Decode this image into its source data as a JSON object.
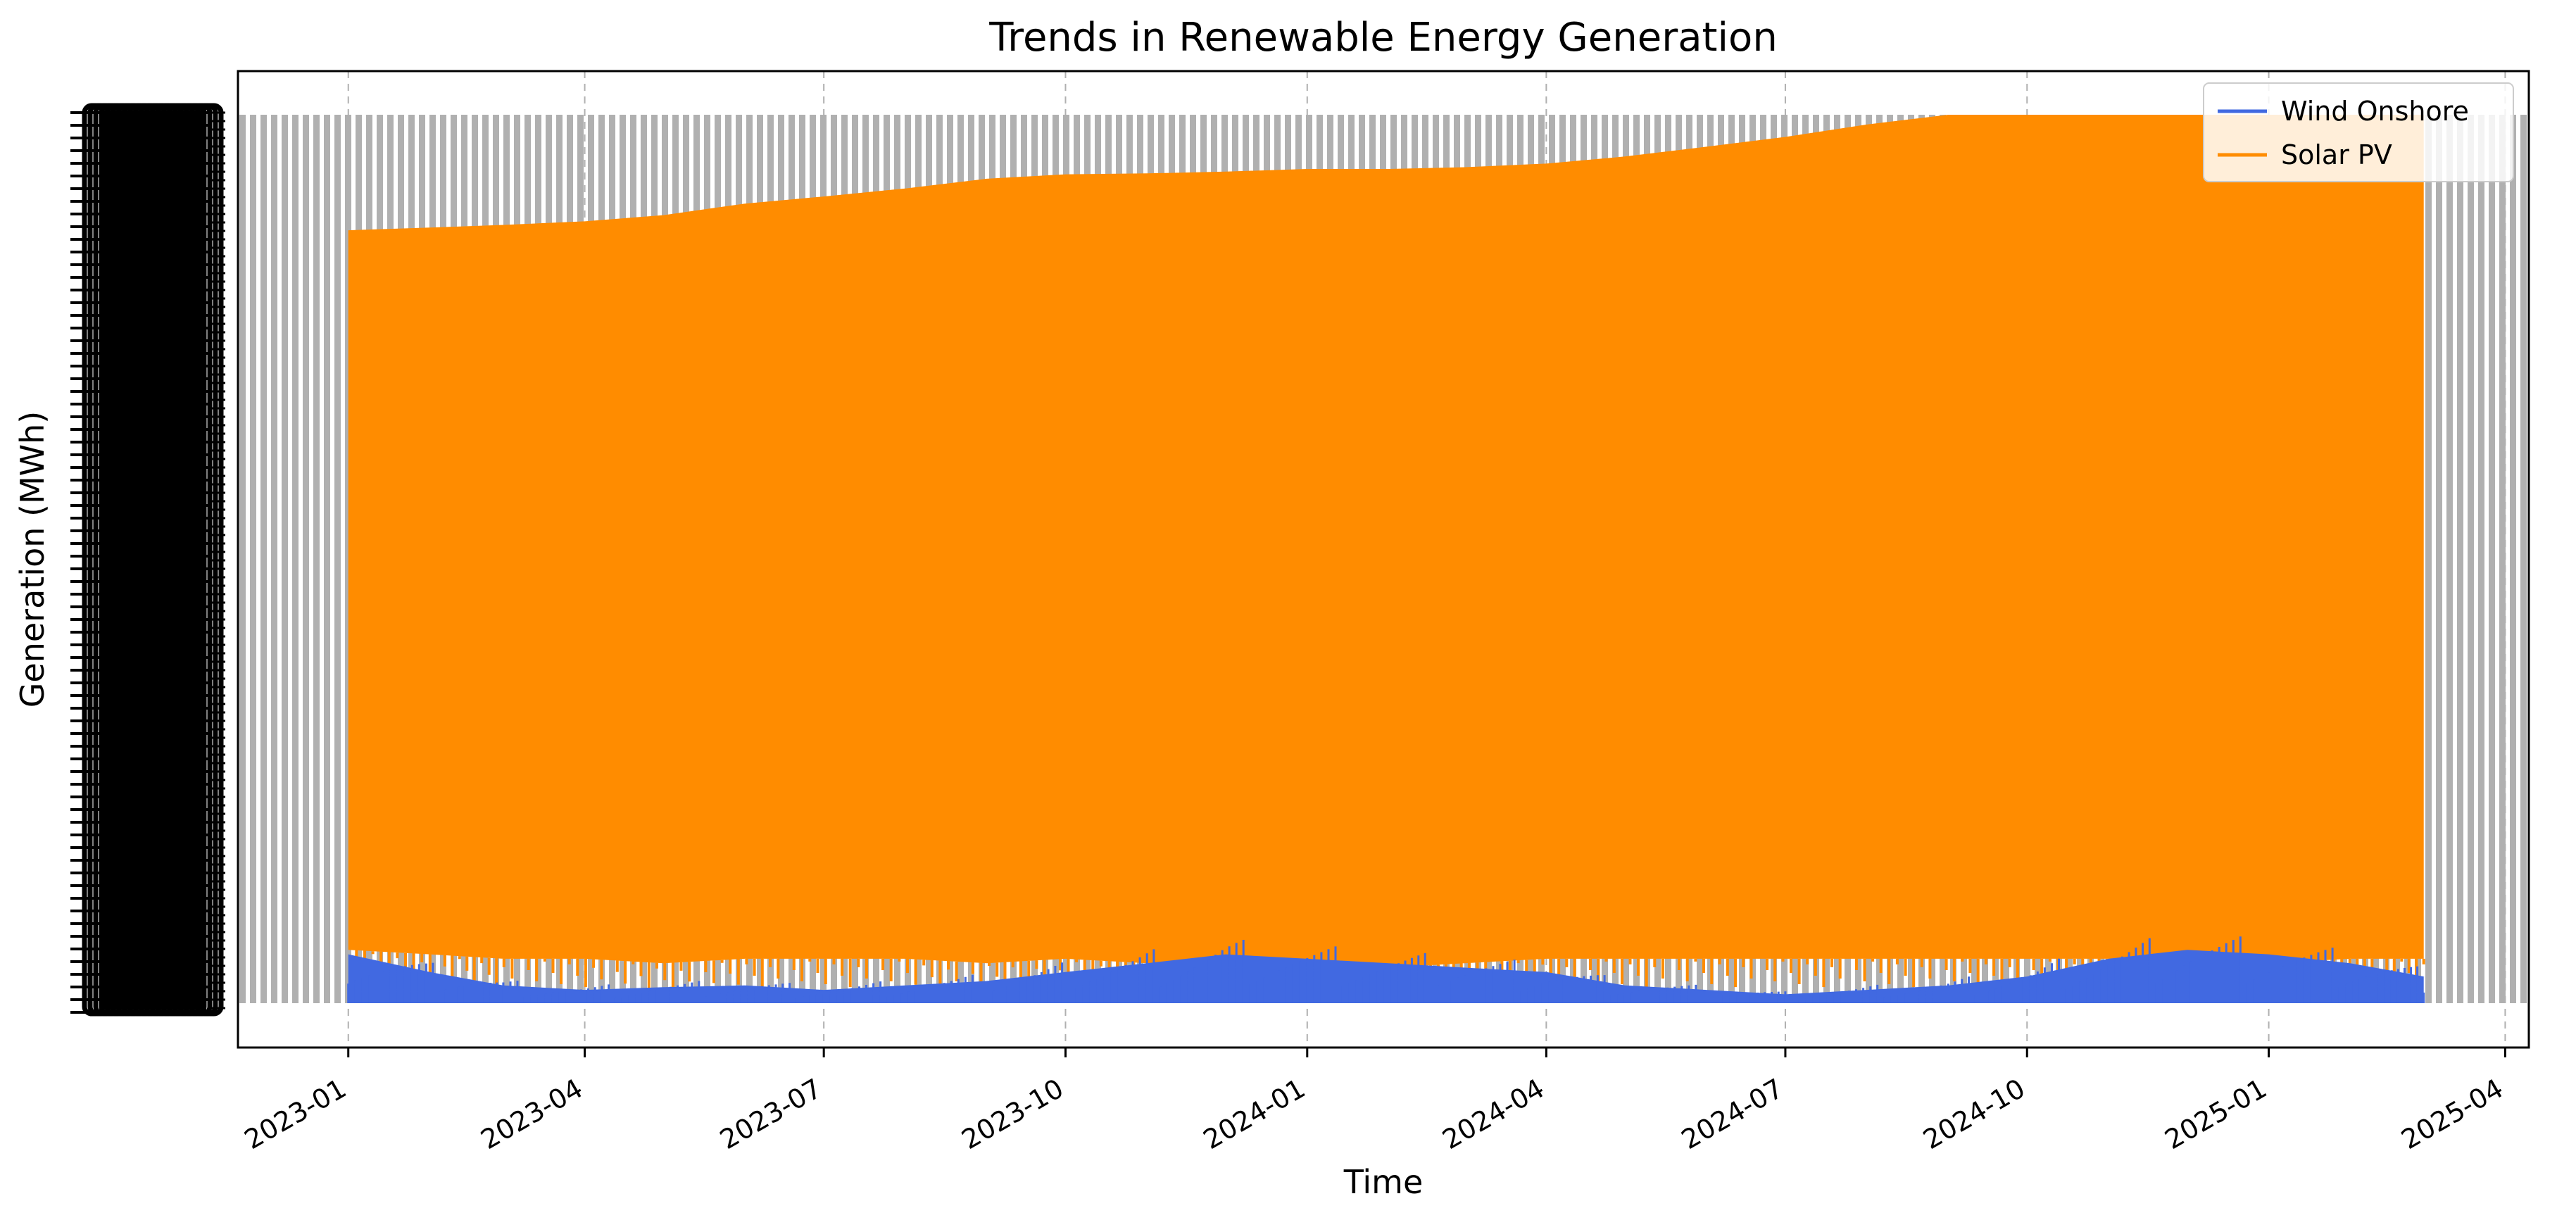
{
  "chart_data": {
    "type": "area",
    "title": "Trends in Renewable Energy Generation",
    "xlabel": "Time",
    "ylabel": "Generation (MWh)",
    "x_axis": {
      "kind": "date",
      "range": [
        "2022-11-20",
        "2025-04-10"
      ],
      "ticks": [
        "2023-01",
        "2023-04",
        "2023-07",
        "2023-10",
        "2024-01",
        "2024-04",
        "2024-07",
        "2024-10",
        "2025-01",
        "2025-04"
      ],
      "tick_label_rotation_deg": 30
    },
    "y_axis": {
      "kind": "categorical",
      "note": "overlapping unreadable tick labels drawn at left; values not legible",
      "range": [
        0,
        1
      ]
    },
    "grid": {
      "x": true,
      "y": false,
      "style": "dashed"
    },
    "legend": {
      "placement": "top-right",
      "entries": [
        "Wind Onshore",
        "Solar PV"
      ]
    },
    "colors": {
      "wind_onshore": "#4169e1",
      "solar_pv": "#ff8c00",
      "background_bars": "#b0b0b0"
    },
    "x": [
      "2023-01-01",
      "2023-02-01",
      "2023-03-01",
      "2023-04-01",
      "2023-05-01",
      "2023-06-01",
      "2023-07-01",
      "2023-08-01",
      "2023-09-01",
      "2023-10-01",
      "2023-11-01",
      "2023-12-01",
      "2024-01-01",
      "2024-02-01",
      "2024-03-01",
      "2024-04-01",
      "2024-05-01",
      "2024-06-01",
      "2024-07-01",
      "2024-08-01",
      "2024-09-01",
      "2024-10-01",
      "2024-11-01",
      "2024-12-01",
      "2025-01-01",
      "2025-02-01",
      "2025-03-01"
    ],
    "series": [
      {
        "name": "Solar PV",
        "upper": [
          0.87,
          0.873,
          0.876,
          0.88,
          0.887,
          0.9,
          0.908,
          0.917,
          0.928,
          0.933,
          0.934,
          0.936,
          0.939,
          0.939,
          0.941,
          0.945,
          0.953,
          0.964,
          0.975,
          0.989,
          1.0,
          1.0,
          1.0,
          1.0,
          1.0,
          1.0,
          1.0
        ],
        "lower": [
          0.06,
          0.055,
          0.05,
          0.05,
          0.045,
          0.05,
          0.05,
          0.05,
          0.045,
          0.05,
          0.045,
          0.045,
          0.045,
          0.04,
          0.045,
          0.05,
          0.05,
          0.05,
          0.05,
          0.05,
          0.05,
          0.05,
          0.05,
          0.045,
          0.045,
          0.05,
          0.05
        ]
      },
      {
        "name": "Wind Onshore",
        "values": [
          0.055,
          0.035,
          0.02,
          0.015,
          0.018,
          0.02,
          0.015,
          0.02,
          0.025,
          0.035,
          0.045,
          0.055,
          0.05,
          0.045,
          0.04,
          0.035,
          0.02,
          0.015,
          0.01,
          0.015,
          0.02,
          0.03,
          0.05,
          0.06,
          0.055,
          0.045,
          0.03
        ]
      }
    ]
  }
}
